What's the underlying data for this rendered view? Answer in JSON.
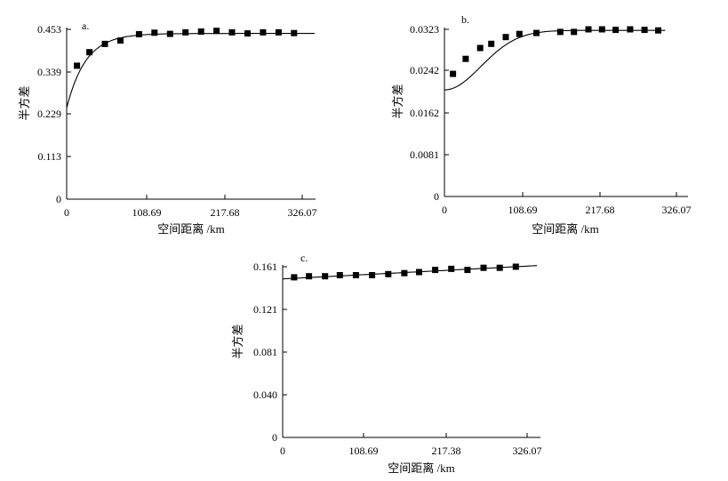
{
  "chart_data": [
    {
      "type": "scatter",
      "panel_label": "a.",
      "xlabel": "空间距离 /km",
      "ylabel": "半方差",
      "x_ticks": [
        "0",
        "108.69",
        "217.68",
        "326.07"
      ],
      "y_ticks": [
        "0",
        "0.113",
        "0.229",
        "0.339",
        "0.453"
      ],
      "xlim": [
        0,
        326.07
      ],
      "ylim": [
        0,
        0.453
      ],
      "points": [
        {
          "x": 13.6,
          "y": 0.356
        },
        {
          "x": 29.9,
          "y": 0.392
        },
        {
          "x": 50.3,
          "y": 0.414
        },
        {
          "x": 70.7,
          "y": 0.423
        },
        {
          "x": 95.1,
          "y": 0.44
        },
        {
          "x": 115.5,
          "y": 0.444
        },
        {
          "x": 135.9,
          "y": 0.441
        },
        {
          "x": 156.3,
          "y": 0.445
        },
        {
          "x": 176.7,
          "y": 0.447
        },
        {
          "x": 197.1,
          "y": 0.449
        },
        {
          "x": 217.4,
          "y": 0.445
        },
        {
          "x": 237.8,
          "y": 0.442
        },
        {
          "x": 258.2,
          "y": 0.445
        },
        {
          "x": 278.6,
          "y": 0.445
        },
        {
          "x": 299.0,
          "y": 0.443
        }
      ],
      "fit_curve": {
        "model": "exponential",
        "nugget": 0.243,
        "sill": 0.442,
        "range": 25,
        "x_max": 326.07
      }
    },
    {
      "type": "scatter",
      "panel_label": "b.",
      "xlabel": "空间距离 /km",
      "ylabel": "半方差",
      "x_ticks": [
        "0",
        "108.69",
        "217.68",
        "326.07"
      ],
      "y_ticks": [
        "0",
        "0.0081",
        "0.0162",
        "0.0242",
        "0.0323"
      ],
      "xlim": [
        0,
        326.07
      ],
      "ylim": [
        0,
        0.0323
      ],
      "points": [
        {
          "x": 11.6,
          "y": 0.0237
        },
        {
          "x": 28.9,
          "y": 0.0266
        },
        {
          "x": 48.6,
          "y": 0.0287
        },
        {
          "x": 63.6,
          "y": 0.0295
        },
        {
          "x": 83.3,
          "y": 0.0308
        },
        {
          "x": 101.8,
          "y": 0.0314
        },
        {
          "x": 125.0,
          "y": 0.0316
        },
        {
          "x": 157.4,
          "y": 0.0318
        },
        {
          "x": 175.9,
          "y": 0.0318
        },
        {
          "x": 195.6,
          "y": 0.0323
        },
        {
          "x": 214.1,
          "y": 0.0323
        },
        {
          "x": 232.6,
          "y": 0.0322
        },
        {
          "x": 252.3,
          "y": 0.0323
        },
        {
          "x": 271.9,
          "y": 0.0322
        },
        {
          "x": 290.4,
          "y": 0.0321
        }
      ],
      "fit_curve": {
        "model": "gaussian",
        "nugget": 0.0206,
        "sill": 0.0321,
        "range": 70,
        "x_max": 300
      }
    },
    {
      "type": "scatter",
      "panel_label": "c.",
      "xlabel": "空间距离 /km",
      "ylabel": "半方差",
      "x_ticks": [
        "0",
        "108.69",
        "217.38",
        "326.07"
      ],
      "y_ticks": [
        "0",
        "0.040",
        "0.081",
        "0.121",
        "0.161"
      ],
      "xlim": [
        0,
        326.07
      ],
      "ylim": [
        0,
        0.161
      ],
      "points": [
        {
          "x": 14.7,
          "y": 0.151
        },
        {
          "x": 33.7,
          "y": 0.152
        },
        {
          "x": 54.4,
          "y": 0.152
        },
        {
          "x": 73.3,
          "y": 0.153
        },
        {
          "x": 94.0,
          "y": 0.153
        },
        {
          "x": 114.7,
          "y": 0.153
        },
        {
          "x": 135.4,
          "y": 0.154
        },
        {
          "x": 156.1,
          "y": 0.155
        },
        {
          "x": 175.0,
          "y": 0.156
        },
        {
          "x": 195.6,
          "y": 0.158
        },
        {
          "x": 216.3,
          "y": 0.159
        },
        {
          "x": 237.0,
          "y": 0.158
        },
        {
          "x": 257.7,
          "y": 0.16
        },
        {
          "x": 278.4,
          "y": 0.16
        },
        {
          "x": 299.1,
          "y": 0.161
        }
      ],
      "fit_curve": {
        "model": "linear",
        "intercept": 0.1495,
        "slope": 3.85e-05,
        "x_max": 326.07
      }
    }
  ]
}
